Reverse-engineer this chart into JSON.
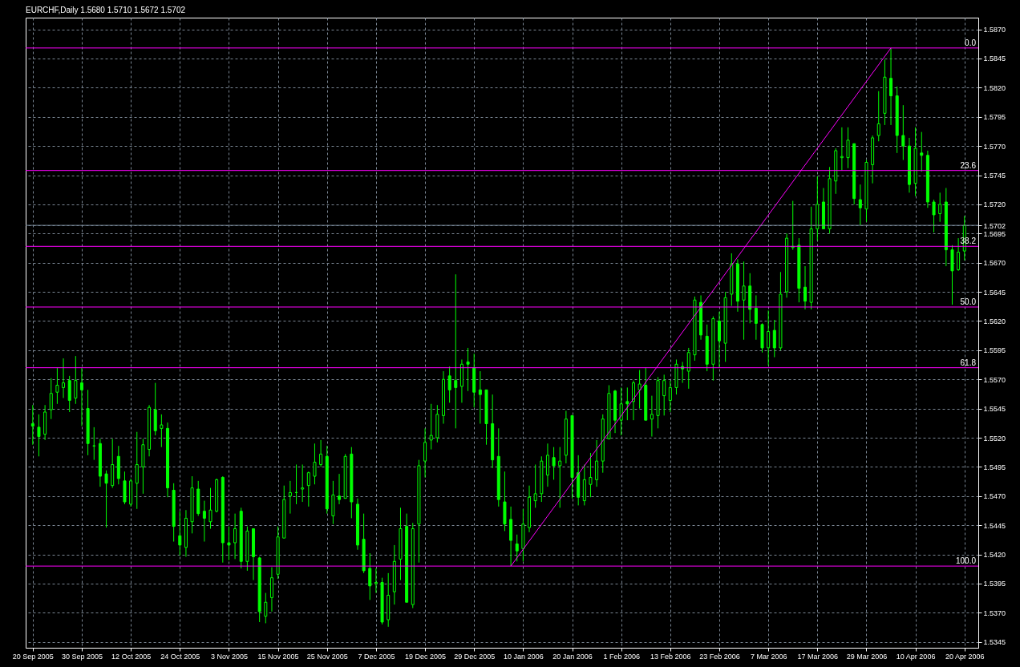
{
  "chart_data": {
    "type": "candlestick",
    "title": "EURCHF,Daily 1.5680 1.5710 1.5672 1.5702",
    "color": "#00ff00",
    "grid": true,
    "categories": [
      "20 Sep 2005",
      null,
      null,
      null,
      null,
      null,
      null,
      null,
      "30 Sep 2005",
      null,
      null,
      null,
      null,
      null,
      null,
      null,
      "12 Oct 2005",
      null,
      null,
      null,
      null,
      null,
      null,
      null,
      "24 Oct 2005",
      null,
      null,
      null,
      null,
      null,
      null,
      null,
      "3 Nov 2005",
      null,
      null,
      null,
      null,
      null,
      null,
      null,
      "15 Nov 2005",
      null,
      null,
      null,
      null,
      null,
      null,
      null,
      "25 Nov 2005",
      null,
      null,
      null,
      null,
      null,
      null,
      null,
      "7 Dec 2005",
      null,
      null,
      null,
      null,
      null,
      null,
      null,
      "19 Dec 2005",
      null,
      null,
      null,
      null,
      null,
      null,
      null,
      "29 Dec 2005",
      null,
      null,
      null,
      null,
      null,
      null,
      null,
      "10 Jan 2006",
      null,
      null,
      null,
      null,
      null,
      null,
      null,
      "20 Jan 2006",
      null,
      null,
      null,
      null,
      null,
      null,
      null,
      "1 Feb 2006",
      null,
      null,
      null,
      null,
      null,
      null,
      null,
      "13 Feb 2006",
      null,
      null,
      null,
      null,
      null,
      null,
      null,
      "23 Feb 2006",
      null,
      null,
      null,
      null,
      null,
      null,
      null,
      "7 Mar 2006",
      null,
      null,
      null,
      null,
      null,
      null,
      null,
      "17 Mar 2006",
      null,
      null,
      null,
      null,
      null,
      null,
      null,
      "29 Mar 2006",
      null,
      null,
      null,
      null,
      null,
      null,
      null,
      "10 Apr 2006",
      null,
      null,
      null,
      null,
      null,
      null,
      null,
      "20 Apr 2006"
    ],
    "ohlc": [
      [
        1.5532,
        1.5548,
        1.5514,
        1.553
      ],
      [
        1.5529,
        1.554,
        1.5504,
        1.5521
      ],
      [
        1.5523,
        1.5548,
        1.5518,
        1.5542
      ],
      [
        1.5544,
        1.5571,
        1.5536,
        1.5558
      ],
      [
        1.5559,
        1.558,
        1.5549,
        1.5565
      ],
      [
        1.5563,
        1.5588,
        1.5554,
        1.5567
      ],
      [
        1.5569,
        1.5573,
        1.5542,
        1.5552
      ],
      [
        1.5554,
        1.559,
        1.5549,
        1.5569
      ],
      [
        1.5567,
        1.558,
        1.553,
        1.5561
      ],
      [
        1.5545,
        1.5561,
        1.5505,
        1.5515
      ],
      [
        1.5513,
        1.5529,
        1.5501,
        1.5513
      ],
      [
        1.5515,
        1.5519,
        1.5478,
        1.5487
      ],
      [
        1.5489,
        1.5492,
        1.5443,
        1.5481
      ],
      [
        1.5479,
        1.5519,
        1.5477,
        1.5497
      ],
      [
        1.5504,
        1.5513,
        1.548,
        1.5485
      ],
      [
        1.5483,
        1.5491,
        1.5463,
        1.5465
      ],
      [
        1.5463,
        1.5485,
        1.5461,
        1.5483
      ],
      [
        1.5481,
        1.5525,
        1.5459,
        1.5497
      ],
      [
        1.5495,
        1.5519,
        1.5472,
        1.5514
      ],
      [
        1.551,
        1.5548,
        1.5504,
        1.5546
      ],
      [
        1.5544,
        1.5567,
        1.5522,
        1.5526
      ],
      [
        1.5528,
        1.554,
        1.5512,
        1.5531
      ],
      [
        1.5528,
        1.5533,
        1.5469,
        1.5477
      ],
      [
        1.5475,
        1.5481,
        1.5431,
        1.5444
      ],
      [
        1.5436,
        1.5457,
        1.5419,
        1.5428
      ],
      [
        1.5426,
        1.5458,
        1.5418,
        1.5451
      ],
      [
        1.5448,
        1.5487,
        1.5438,
        1.5477
      ],
      [
        1.5476,
        1.5483,
        1.5453,
        1.5455
      ],
      [
        1.5457,
        1.5466,
        1.5431,
        1.5451
      ],
      [
        1.5448,
        1.5477,
        1.5442,
        1.5458
      ],
      [
        1.5457,
        1.5485,
        1.5456,
        1.5484
      ],
      [
        1.5486,
        1.5487,
        1.5413,
        1.543
      ],
      [
        1.543,
        1.5444,
        1.5415,
        1.5428
      ],
      [
        1.543,
        1.5455,
        1.5416,
        1.5442
      ],
      [
        1.5457,
        1.546,
        1.5408,
        1.5414
      ],
      [
        1.5414,
        1.5444,
        1.5406,
        1.544
      ],
      [
        1.5442,
        1.5442,
        1.5398,
        1.5418
      ],
      [
        1.5417,
        1.5418,
        1.5362,
        1.5371
      ],
      [
        1.5367,
        1.5387,
        1.5361,
        1.5379
      ],
      [
        1.5383,
        1.5409,
        1.5371,
        1.54
      ],
      [
        1.5403,
        1.5444,
        1.5399,
        1.5435
      ],
      [
        1.5434,
        1.5479,
        1.5434,
        1.5467
      ],
      [
        1.547,
        1.5483,
        1.5455,
        1.5473
      ],
      [
        1.5473,
        1.5497,
        1.5463,
        1.5473
      ],
      [
        1.5476,
        1.5497,
        1.5465,
        1.5477
      ],
      [
        1.5479,
        1.5491,
        1.5461,
        1.549
      ],
      [
        1.5487,
        1.5515,
        1.548,
        1.5499
      ],
      [
        1.5497,
        1.5518,
        1.5495,
        1.5506
      ],
      [
        1.5504,
        1.5513,
        1.5455,
        1.5459
      ],
      [
        1.5453,
        1.5483,
        1.5446,
        1.5471
      ],
      [
        1.547,
        1.5489,
        1.5463,
        1.5467
      ],
      [
        1.5468,
        1.5506,
        1.5468,
        1.5504
      ],
      [
        1.5506,
        1.5512,
        1.5451,
        1.5465
      ],
      [
        1.5463,
        1.5468,
        1.5424,
        1.5428
      ],
      [
        1.5433,
        1.5455,
        1.5404,
        1.5406
      ],
      [
        1.5408,
        1.5421,
        1.5381,
        1.5393
      ],
      [
        1.5395,
        1.5408,
        1.5387,
        1.5396
      ],
      [
        1.5396,
        1.54,
        1.536,
        1.5362
      ],
      [
        1.5364,
        1.5404,
        1.5358,
        1.5385
      ],
      [
        1.5388,
        1.5428,
        1.5377,
        1.5414
      ],
      [
        1.5416,
        1.546,
        1.5398,
        1.5442
      ],
      [
        1.5444,
        1.5455,
        1.5379,
        1.5379
      ],
      [
        1.5377,
        1.5447,
        1.5374,
        1.5442
      ],
      [
        1.5446,
        1.5501,
        1.5413,
        1.5496
      ],
      [
        1.55,
        1.5528,
        1.5486,
        1.5516
      ],
      [
        1.5518,
        1.5549,
        1.551,
        1.5522
      ],
      [
        1.552,
        1.5548,
        1.5516,
        1.554
      ],
      [
        1.5539,
        1.5577,
        1.5532,
        1.557
      ],
      [
        1.5573,
        1.5581,
        1.555,
        1.5561
      ],
      [
        1.5569,
        1.566,
        1.5528,
        1.5563
      ],
      [
        1.5564,
        1.5587,
        1.555,
        1.5583
      ],
      [
        1.5585,
        1.5597,
        1.556,
        1.5583
      ],
      [
        1.558,
        1.5592,
        1.5546,
        1.5559
      ],
      [
        1.5561,
        1.5577,
        1.5532,
        1.5557
      ],
      [
        1.5561,
        1.5561,
        1.5514,
        1.5532
      ],
      [
        1.5532,
        1.5557,
        1.5494,
        1.5501
      ],
      [
        1.5504,
        1.5528,
        1.5461,
        1.5467
      ],
      [
        1.5465,
        1.5491,
        1.544,
        1.5446
      ],
      [
        1.545,
        1.5461,
        1.541,
        1.5432
      ],
      [
        1.5429,
        1.5437,
        1.5414,
        1.5423
      ],
      [
        1.5425,
        1.5459,
        1.5414,
        1.5446
      ],
      [
        1.5443,
        1.5479,
        1.5439,
        1.5469
      ],
      [
        1.5466,
        1.5497,
        1.546,
        1.5472
      ],
      [
        1.5472,
        1.5504,
        1.5465,
        1.55
      ],
      [
        1.5488,
        1.5515,
        1.5478,
        1.5505
      ],
      [
        1.5503,
        1.5512,
        1.5484,
        1.5496
      ],
      [
        1.5496,
        1.5512,
        1.546,
        1.55
      ],
      [
        1.5505,
        1.5543,
        1.5498,
        1.5536
      ],
      [
        1.5539,
        1.5539,
        1.5468,
        1.5486
      ],
      [
        1.549,
        1.5505,
        1.5462,
        1.5469
      ],
      [
        1.5466,
        1.5497,
        1.5462,
        1.5484
      ],
      [
        1.548,
        1.5507,
        1.5469,
        1.5486
      ],
      [
        1.5484,
        1.5518,
        1.5478,
        1.55
      ],
      [
        1.55,
        1.554,
        1.549,
        1.5536
      ],
      [
        1.5519,
        1.5565,
        1.5519,
        1.5558
      ],
      [
        1.556,
        1.5561,
        1.5524,
        1.5535
      ],
      [
        1.5535,
        1.5563,
        1.5522,
        1.5549
      ],
      [
        1.5551,
        1.5563,
        1.5535,
        1.5549
      ],
      [
        1.5551,
        1.5569,
        1.5535,
        1.5567
      ],
      [
        1.5561,
        1.5578,
        1.5545,
        1.5566
      ],
      [
        1.5565,
        1.558,
        1.5535,
        1.5535
      ],
      [
        1.5536,
        1.5556,
        1.5521,
        1.554
      ],
      [
        1.5539,
        1.5572,
        1.5528,
        1.5569
      ],
      [
        1.5556,
        1.5574,
        1.5539,
        1.5569
      ],
      [
        1.5552,
        1.5569,
        1.5542,
        1.5563
      ],
      [
        1.5563,
        1.5587,
        1.5557,
        1.5583
      ],
      [
        1.5581,
        1.5585,
        1.5567,
        1.5579
      ],
      [
        1.5577,
        1.5597,
        1.5562,
        1.5593
      ],
      [
        1.5591,
        1.5641,
        1.5586,
        1.5638
      ],
      [
        1.5636,
        1.5642,
        1.5604,
        1.5608
      ],
      [
        1.5607,
        1.5617,
        1.5577,
        1.5583
      ],
      [
        1.5583,
        1.5624,
        1.5569,
        1.5622
      ],
      [
        1.562,
        1.5628,
        1.558,
        1.5603
      ],
      [
        1.5601,
        1.5645,
        1.5585,
        1.564
      ],
      [
        1.5643,
        1.5678,
        1.5633,
        1.5669
      ],
      [
        1.5669,
        1.5673,
        1.5628,
        1.5637
      ],
      [
        1.5638,
        1.5671,
        1.5604,
        1.565
      ],
      [
        1.565,
        1.5661,
        1.5618,
        1.563
      ],
      [
        1.5631,
        1.5642,
        1.5604,
        1.5618
      ],
      [
        1.5617,
        1.5618,
        1.5593,
        1.5597
      ],
      [
        1.5597,
        1.5629,
        1.5582,
        1.5611
      ],
      [
        1.5612,
        1.5621,
        1.5589,
        1.5597
      ],
      [
        1.5597,
        1.5662,
        1.5595,
        1.5643
      ],
      [
        1.5645,
        1.5695,
        1.564,
        1.5691
      ],
      [
        1.5683,
        1.5723,
        1.5681,
        1.5684
      ],
      [
        1.5685,
        1.5691,
        1.5636,
        1.5648
      ],
      [
        1.5649,
        1.5667,
        1.563,
        1.5637
      ],
      [
        1.5636,
        1.5718,
        1.563,
        1.5699
      ],
      [
        1.5699,
        1.5744,
        1.5689,
        1.572
      ],
      [
        1.5722,
        1.5734,
        1.5699,
        1.5699
      ],
      [
        1.5699,
        1.5752,
        1.5695,
        1.5742
      ],
      [
        1.574,
        1.5768,
        1.5729,
        1.5766
      ],
      [
        1.576,
        1.5786,
        1.5749,
        1.5761
      ],
      [
        1.576,
        1.5786,
        1.5751,
        1.5775
      ],
      [
        1.5772,
        1.5772,
        1.572,
        1.5725
      ],
      [
        1.5724,
        1.5737,
        1.5702,
        1.5717
      ],
      [
        1.5716,
        1.5758,
        1.5705,
        1.5756
      ],
      [
        1.5754,
        1.5779,
        1.5738,
        1.5777
      ],
      [
        1.5779,
        1.5817,
        1.5774,
        1.5789
      ],
      [
        1.5798,
        1.5844,
        1.5788,
        1.5829
      ],
      [
        1.5828,
        1.5854,
        1.5788,
        1.5813
      ],
      [
        1.5813,
        1.5821,
        1.5764,
        1.5779
      ],
      [
        1.5779,
        1.5805,
        1.5758,
        1.577
      ],
      [
        1.577,
        1.5777,
        1.573,
        1.5737
      ],
      [
        1.5738,
        1.5786,
        1.5727,
        1.5768
      ],
      [
        1.5764,
        1.5782,
        1.5748,
        1.5762
      ],
      [
        1.5762,
        1.5766,
        1.5717,
        1.5722
      ],
      [
        1.5722,
        1.5724,
        1.5696,
        1.5711
      ],
      [
        1.5712,
        1.573,
        1.5705,
        1.572
      ],
      [
        1.5722,
        1.5734,
        1.5667,
        1.5681
      ],
      [
        1.5681,
        1.5685,
        1.5634,
        1.5663
      ],
      [
        1.5664,
        1.5691,
        1.5663,
        1.5679
      ],
      [
        1.568,
        1.571,
        1.5672,
        1.5702
      ]
    ],
    "series": [
      {
        "type": "line",
        "color": "#ff00ff",
        "values": [
          null,
          null,
          null,
          null,
          null,
          null,
          null,
          null,
          null,
          null,
          null,
          null,
          null,
          null,
          null,
          null,
          null,
          null,
          null,
          null,
          null,
          null,
          null,
          null,
          null,
          null,
          null,
          null,
          null,
          null,
          null,
          null,
          null,
          null,
          null,
          null,
          null,
          null,
          null,
          null,
          null,
          null,
          null,
          null,
          null,
          null,
          null,
          null,
          null,
          null,
          null,
          null,
          null,
          null,
          null,
          null,
          null,
          null,
          null,
          null,
          null,
          null,
          null,
          null,
          null,
          null,
          null,
          null,
          null,
          null,
          null,
          null,
          null,
          null,
          null,
          null,
          null,
          null,
          1.541,
          null,
          null,
          null,
          null,
          null,
          null,
          null,
          null,
          null,
          null,
          null,
          null,
          null,
          null,
          null,
          null,
          null,
          null,
          null,
          null,
          null,
          null,
          null,
          null,
          null,
          null,
          null,
          null,
          null,
          null,
          null,
          null,
          null,
          null,
          null,
          null,
          null,
          null,
          null,
          null,
          null,
          null,
          null,
          null,
          null,
          null,
          null,
          null,
          null,
          null,
          null,
          null,
          null,
          null,
          null,
          null,
          null,
          null,
          null,
          null,
          null,
          1.5854,
          null,
          null,
          null,
          null,
          null,
          null,
          null,
          null,
          null,
          null,
          null,
          null
        ]
      }
    ],
    "ylim": [
      1.534,
      1.588
    ],
    "yticks": [
      1.5345,
      {
        "value": 1.537,
        "label": "1.5370"
      },
      1.5395,
      {
        "value": 1.542,
        "label": "1.5420"
      },
      1.5445,
      {
        "value": 1.547,
        "label": "1.5470"
      },
      1.5495,
      {
        "value": 1.552,
        "label": "1.5520"
      },
      1.5545,
      {
        "value": 1.557,
        "label": "1.5570"
      },
      1.5595,
      {
        "value": 1.562,
        "label": "1.5620"
      },
      1.5645,
      {
        "value": 1.567,
        "label": "1.5670"
      },
      1.5695,
      1.5702,
      {
        "value": 1.572,
        "label": "1.5720"
      },
      1.5745,
      {
        "value": 1.577,
        "label": "1.5770"
      },
      1.5795,
      {
        "value": 1.582,
        "label": "1.5820"
      },
      1.5845,
      {
        "value": 1.587,
        "label": "1.5870"
      }
    ],
    "ref_lines": [
      {
        "axis": "y",
        "value": 1.5854,
        "color": "#ff00ff"
      },
      {
        "axis": "y",
        "value": 1.5749,
        "color": "#ff00ff"
      },
      {
        "axis": "y",
        "value": 1.5684,
        "color": "#ff00ff"
      },
      {
        "axis": "y",
        "value": 1.5632,
        "color": "#ff00ff"
      },
      {
        "axis": "y",
        "value": 1.558,
        "color": "#ff00ff"
      },
      {
        "axis": "y",
        "value": 1.541,
        "color": "#ff00ff"
      },
      {
        "axis": "y",
        "value": 1.5702,
        "color": "#778899"
      }
    ],
    "annotations": [
      {
        "text": "0.0",
        "y": 1.5854
      },
      {
        "text": "23.6",
        "y": 1.5749
      },
      {
        "text": "38.2",
        "y": 1.5684
      },
      {
        "text": "50.0",
        "y": 1.5632
      },
      {
        "text": "61.8",
        "y": 1.558
      },
      {
        "text": "100.0",
        "y": 1.541
      }
    ]
  }
}
